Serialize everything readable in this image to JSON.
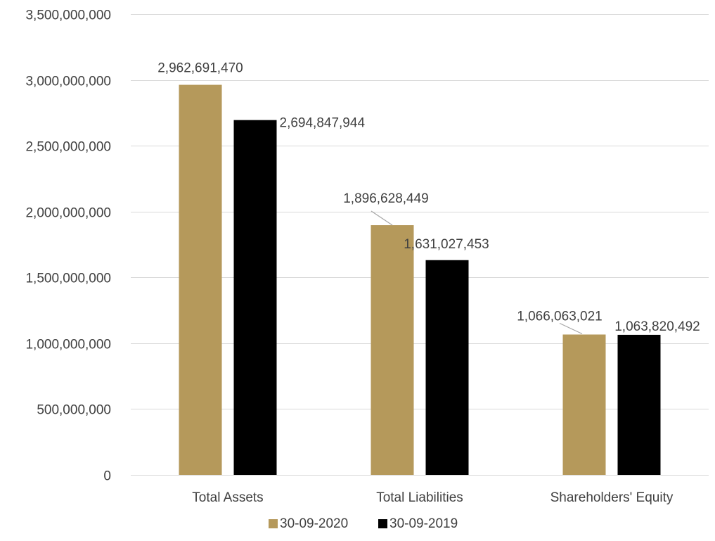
{
  "chart_data": {
    "type": "bar",
    "categories": [
      "Total Assets",
      "Total Liabilities",
      "Shareholders' Equity"
    ],
    "series": [
      {
        "name": "30-09-2020",
        "color": "#b5995b",
        "values": [
          2962691470,
          1896628449,
          1066063021
        ],
        "labels": [
          "2,962,691,470",
          "1,896,628,449",
          "1,066,063,021"
        ]
      },
      {
        "name": "30-09-2019",
        "color": "#000000",
        "values": [
          2694847944,
          1631027453,
          1063820492
        ],
        "labels": [
          "2,694,847,944",
          "1,631,027,453",
          "1,063,820,492"
        ]
      }
    ],
    "ylim": [
      0,
      3500000000
    ],
    "yticks": [
      {
        "value": 0,
        "label": "0"
      },
      {
        "value": 500000000,
        "label": "500,000,000"
      },
      {
        "value": 1000000000,
        "label": "1,000,000,000"
      },
      {
        "value": 1500000000,
        "label": "1,500,000,000"
      },
      {
        "value": 2000000000,
        "label": "2,000,000,000"
      },
      {
        "value": 2500000000,
        "label": "2,500,000,000"
      },
      {
        "value": 3000000000,
        "label": "3,000,000,000"
      },
      {
        "value": 3500000000,
        "label": "3,500,000,000"
      }
    ],
    "grid": true,
    "legend": "bottom"
  }
}
